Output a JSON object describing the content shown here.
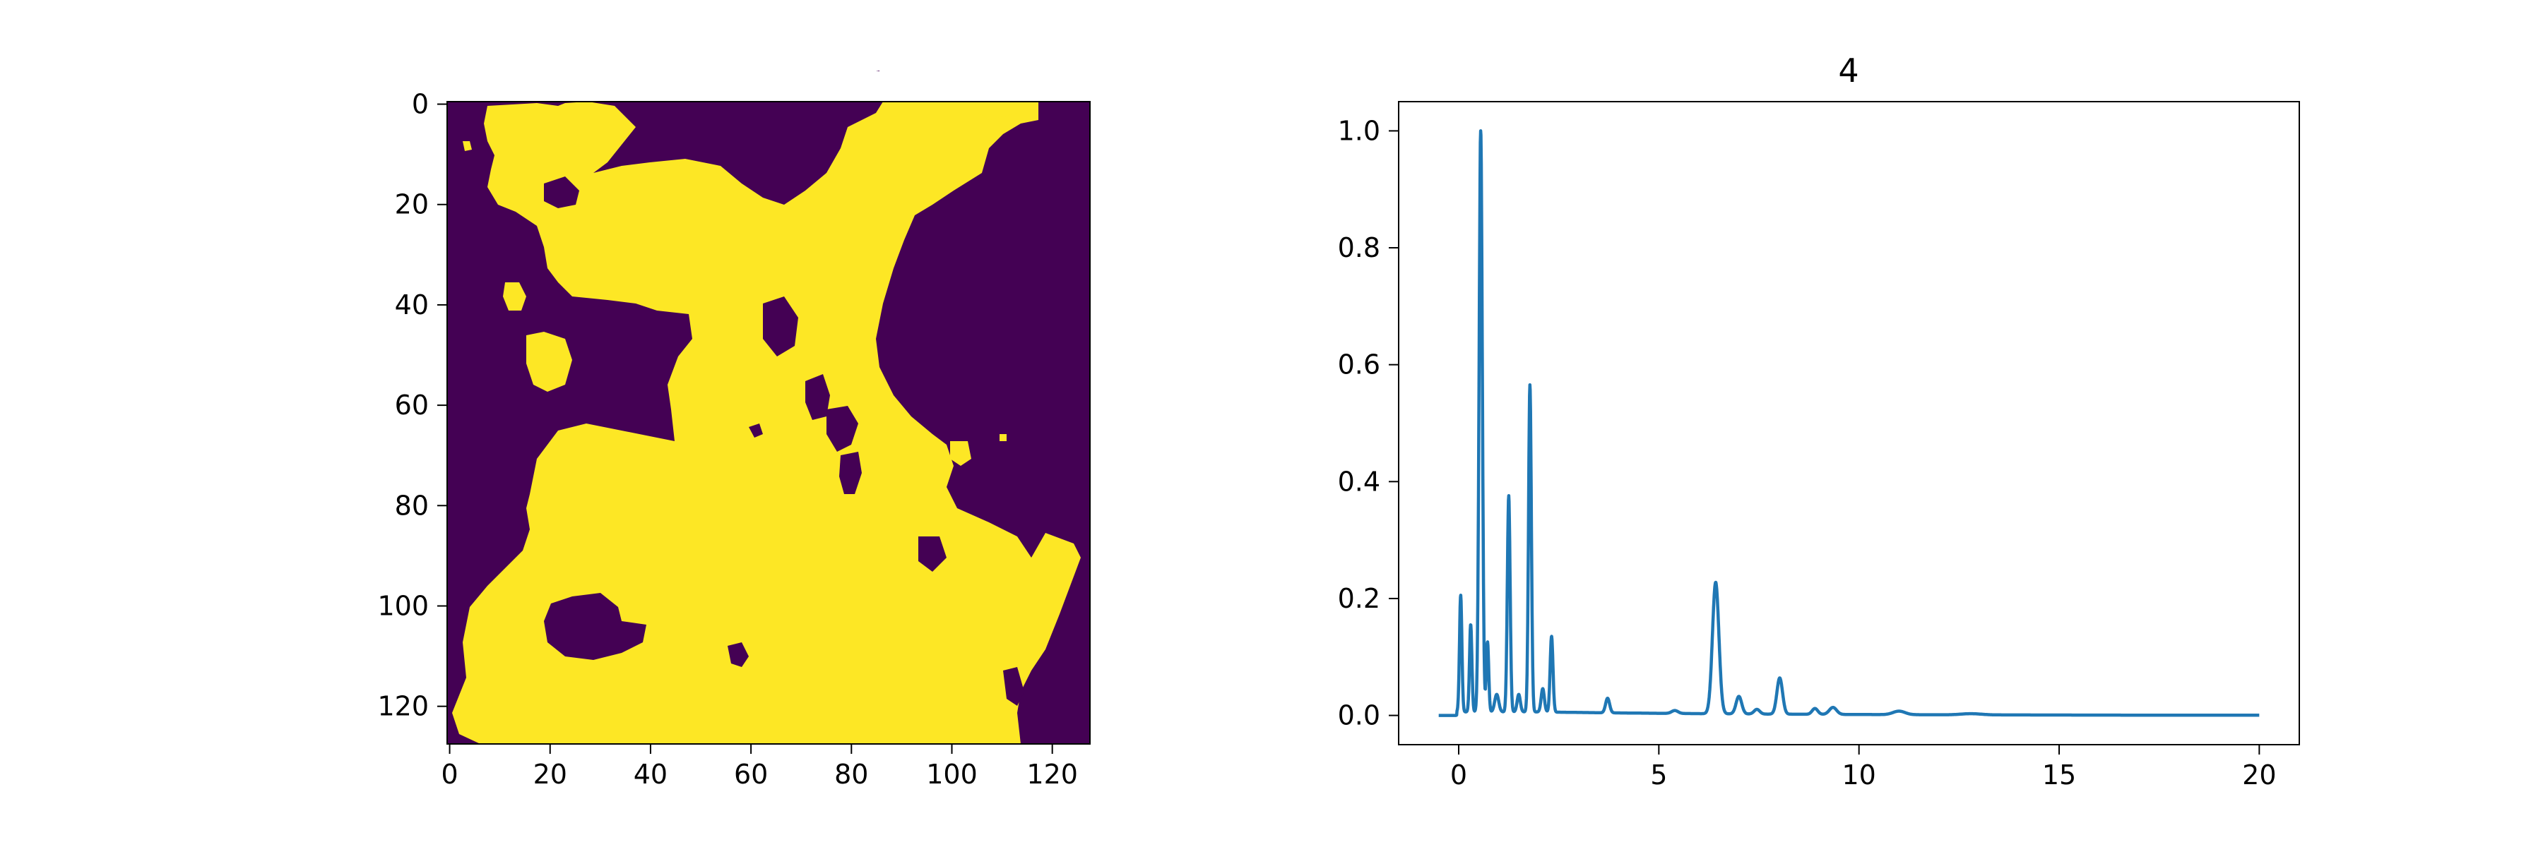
{
  "chart_data": [
    {
      "type": "heatmap",
      "title": "",
      "xlabel": "",
      "ylabel": "",
      "xlim": [
        -0.5,
        127.5
      ],
      "ylim": [
        127.5,
        -0.5
      ],
      "xticks": [
        "0",
        "20",
        "40",
        "60",
        "80",
        "100",
        "120"
      ],
      "yticks": [
        "0",
        "20",
        "40",
        "60",
        "80",
        "100",
        "120"
      ],
      "colors": {
        "low": "#440154",
        "high": "#fde725"
      },
      "description_values": "binary mask 128x128; value 1 rendered yellow, value 0 rendered dark purple",
      "grid": false
    },
    {
      "type": "line",
      "title": "4",
      "xlabel": "",
      "ylabel": "",
      "xlim": [
        -1.5,
        21.0
      ],
      "ylim": [
        -0.05,
        1.05
      ],
      "xticks": [
        "0",
        "5",
        "10",
        "15",
        "20"
      ],
      "yticks": [
        "0.0",
        "0.2",
        "0.4",
        "0.6",
        "0.8",
        "1.0"
      ],
      "grid": false,
      "series": [
        {
          "color": "#1f77b4",
          "peaks": [
            {
              "x": 0.05,
              "y": 0.2,
              "w": 0.03
            },
            {
              "x": 0.3,
              "y": 0.15,
              "w": 0.03
            },
            {
              "x": 0.55,
              "y": 1.0,
              "w": 0.04
            },
            {
              "x": 0.72,
              "y": 0.12,
              "w": 0.03
            },
            {
              "x": 0.95,
              "y": 0.03,
              "w": 0.05
            },
            {
              "x": 1.25,
              "y": 0.37,
              "w": 0.035
            },
            {
              "x": 1.5,
              "y": 0.03,
              "w": 0.04
            },
            {
              "x": 1.78,
              "y": 0.56,
              "w": 0.035
            },
            {
              "x": 2.1,
              "y": 0.04,
              "w": 0.04
            },
            {
              "x": 2.32,
              "y": 0.13,
              "w": 0.035
            },
            {
              "x": 3.72,
              "y": 0.025,
              "w": 0.05
            },
            {
              "x": 5.4,
              "y": 0.005,
              "w": 0.08
            },
            {
              "x": 6.42,
              "y": 0.225,
              "w": 0.08
            },
            {
              "x": 7.0,
              "y": 0.03,
              "w": 0.07
            },
            {
              "x": 7.45,
              "y": 0.008,
              "w": 0.07
            },
            {
              "x": 8.02,
              "y": 0.062,
              "w": 0.07
            },
            {
              "x": 8.9,
              "y": 0.01,
              "w": 0.07
            },
            {
              "x": 9.35,
              "y": 0.012,
              "w": 0.09
            },
            {
              "x": 11.0,
              "y": 0.006,
              "w": 0.15
            },
            {
              "x": 12.8,
              "y": 0.002,
              "w": 0.25
            }
          ],
          "baseline": 0.006,
          "x_range": [
            -0.5,
            20.0
          ]
        }
      ]
    }
  ]
}
